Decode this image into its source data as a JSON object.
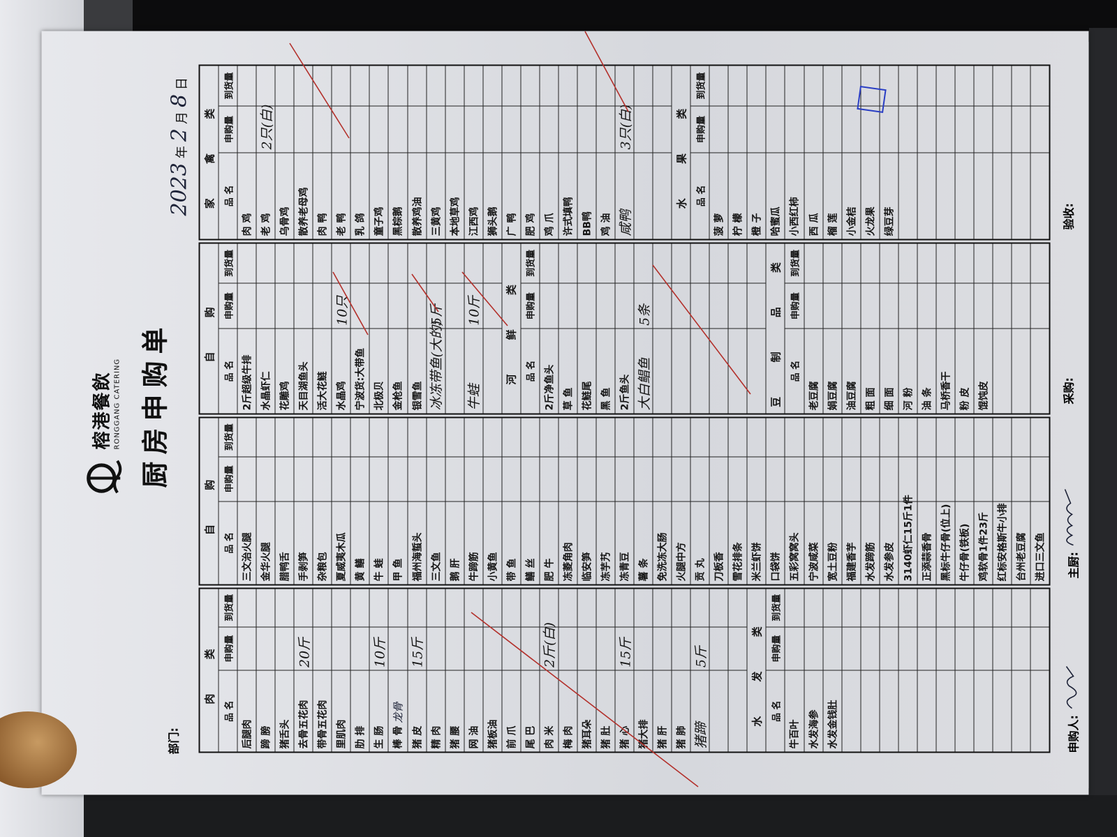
{
  "header": {
    "brand_cn": "榕港餐飲",
    "brand_en": "RONGGANG CATERING",
    "title": "厨房申购单",
    "department_label": "部门:",
    "date": {
      "year": "2023",
      "year_unit": "年",
      "month": "2",
      "month_unit": "月",
      "day": "8",
      "day_unit": "日"
    }
  },
  "column_headers": {
    "name": "品 名",
    "request": "申购量",
    "arrived": "到货量"
  },
  "groups": [
    {
      "sections": [
        {
          "title": "肉 类",
          "rows": [
            {
              "name": "后腿肉"
            },
            {
              "name": "蹄 膀"
            },
            {
              "name": "猪舌头"
            },
            {
              "name": "去骨五花肉",
              "qty": "20斤"
            },
            {
              "name": "带骨五花肉"
            },
            {
              "name": "里肌肉"
            },
            {
              "name": "肋 排"
            },
            {
              "name": "生 肠",
              "qty": "10斤"
            },
            {
              "name": "棒 骨",
              "note": "龙骨"
            },
            {
              "name": "猪 皮",
              "qty": "15斤"
            },
            {
              "name": "精 肉"
            },
            {
              "name": "猪 腰"
            },
            {
              "name": "网 油"
            },
            {
              "name": "猪板油"
            },
            {
              "name": "前 爪"
            },
            {
              "name": "尾 巴"
            },
            {
              "name": "肉 米",
              "qty": "2斤(白)"
            },
            {
              "name": "梅 肉"
            },
            {
              "name": "猪耳朵"
            },
            {
              "name": "猪 肚"
            },
            {
              "name": "猪 心",
              "qty": "15斤"
            },
            {
              "name": "猪大排"
            },
            {
              "name": "猪 肝"
            },
            {
              "name": "猪 肺"
            },
            {
              "name": "猪蹄",
              "qty": "5斤",
              "hw": true
            },
            {},
            {}
          ]
        },
        {
          "title": "水 发 类",
          "rows": [
            {
              "name": "牛百叶"
            },
            {
              "name": "水发海参"
            },
            {
              "name": "水发金钱肚"
            },
            {},
            {},
            {},
            {},
            {},
            {},
            {},
            {},
            {},
            {},
            {}
          ]
        }
      ]
    },
    {
      "sections": [
        {
          "title": "自 购",
          "rows": [
            {
              "name": "三文治火腿"
            },
            {
              "name": "金华火腿"
            },
            {
              "name": "腊鸭舌"
            },
            {
              "name": "手剥笋"
            },
            {
              "name": "杂粮包"
            },
            {
              "name": "夏威夷木瓜"
            },
            {
              "name": "黄 鳝"
            },
            {
              "name": "牛 蛙"
            },
            {
              "name": "甲 鱼"
            },
            {
              "name": "福州海蜇头"
            },
            {
              "name": "三文鱼"
            },
            {
              "name": "鹅 肝"
            },
            {
              "name": "牛蹄筋"
            },
            {
              "name": "小黄鱼"
            },
            {
              "name": "带 鱼"
            },
            {
              "name": "鳝 丝"
            },
            {
              "name": "肥 牛"
            },
            {
              "name": "冻菱角肉"
            },
            {
              "name": "临安笋"
            },
            {
              "name": "冻芋艿"
            },
            {
              "name": "冻青豆"
            },
            {
              "name": "薯 条"
            },
            {
              "name": "免洗冻大肠"
            },
            {
              "name": "火腿中方"
            },
            {
              "name": "贡 丸"
            },
            {
              "name": "刀板香"
            },
            {
              "name": "雪花排条"
            },
            {
              "name": "米兰虾饼"
            },
            {
              "name": "口袋饼"
            },
            {
              "name": "五彩窝窝头"
            },
            {
              "name": "宁波咸菜"
            },
            {
              "name": "宽土豆粉"
            },
            {
              "name": "福建香芋"
            },
            {
              "name": "水发蹄筋"
            },
            {
              "name": "水发参皮"
            },
            {
              "name": "3140虾仁15斤1件"
            },
            {
              "name": "正添蒜香骨"
            },
            {
              "name": "黑标牛仔骨(位上)"
            },
            {
              "name": "牛仔骨(铁板)"
            },
            {
              "name": "鸡软骨1件23斤"
            },
            {
              "name": "红标安格斯牛小排"
            },
            {
              "name": "台州老豆腐"
            },
            {
              "name": "进口三文鱼"
            }
          ]
        }
      ]
    },
    {
      "sections": [
        {
          "title": "自 购",
          "rows": [
            {
              "name": "2斤超级牛排"
            },
            {
              "name": "水晶虾仁"
            },
            {
              "name": "花雕鸡"
            },
            {
              "name": "天目湖鱼头"
            },
            {
              "name": "活大花鲢"
            },
            {
              "name": "水晶鸡",
              "qty": "10只"
            },
            {
              "name": "宁波货:大带鱼"
            },
            {
              "name": "北极贝"
            },
            {
              "name": "金枪鱼"
            },
            {
              "name": "银雪鱼"
            },
            {
              "name": "冰冻带鱼(大的)",
              "qty": "5斤",
              "hw": true
            },
            {},
            {
              "name": "牛蛙",
              "qty": "10斤",
              "hw": true
            },
            {}
          ]
        },
        {
          "title": "河 鲜 类",
          "rows": [
            {
              "name": "2斤净鱼头"
            },
            {
              "name": "草 鱼"
            },
            {
              "name": "花鲢尾"
            },
            {
              "name": "黑 鱼"
            },
            {
              "name": "2斤鱼头"
            },
            {
              "name": "大白鲳鱼",
              "qty": "5条",
              "hw": true
            },
            {},
            {},
            {},
            {},
            {},
            {}
          ]
        },
        {
          "title": "豆 制 品 类",
          "rows": [
            {
              "name": "老豆腐"
            },
            {
              "name": "娟豆腐"
            },
            {
              "name": "油豆腐"
            },
            {
              "name": "粗 面"
            },
            {
              "name": "细 面"
            },
            {
              "name": "河 粉"
            },
            {
              "name": "油 条"
            },
            {
              "name": "马桥香干"
            },
            {
              "name": "粉 皮"
            },
            {
              "name": "馄饨皮"
            },
            {},
            {},
            {}
          ]
        }
      ]
    },
    {
      "sections": [
        {
          "title": "家 禽 类",
          "rows": [
            {
              "name": "肉 鸡"
            },
            {
              "name": "老 鸡",
              "qty": "2只(白)"
            },
            {
              "name": "乌骨鸡"
            },
            {
              "name": "散养老母鸡"
            },
            {
              "name": "肉 鸭"
            },
            {
              "name": "老 鸭"
            },
            {
              "name": "乳 鸽"
            },
            {
              "name": "童子鸡"
            },
            {
              "name": "黑棕鹅"
            },
            {
              "name": "散养鸡油"
            },
            {
              "name": "三黄鸡"
            },
            {
              "name": "本地草鸡"
            },
            {
              "name": "江西鸡"
            },
            {
              "name": "狮头鹅"
            },
            {
              "name": "广 鸭"
            },
            {
              "name": "肥 鸡"
            },
            {
              "name": "鸡 爪"
            },
            {
              "name": "许式填鸭"
            },
            {
              "name": "BB鸭"
            },
            {
              "name": "鸡 油"
            },
            {
              "name": "咸鸭",
              "qty": "3只(白)",
              "hw": true
            },
            {},
            {}
          ]
        },
        {
          "title": "水 果 类",
          "rows": [
            {
              "name": "菠 萝"
            },
            {
              "name": "柠 檬"
            },
            {
              "name": "橙 子"
            },
            {
              "name": "哈蜜瓜"
            },
            {
              "name": "小西红柿"
            },
            {
              "name": "西 瓜"
            },
            {
              "name": "榴 莲"
            },
            {
              "name": "小金桔"
            },
            {
              "name": "火龙果"
            },
            {
              "name": "绿豆芽"
            },
            {},
            {},
            {},
            {},
            {},
            {},
            {},
            {}
          ]
        }
      ]
    }
  ],
  "footer": {
    "requester": "申购人:",
    "chef": "主厨:",
    "purchaser": "采购:",
    "receiver": "验收:"
  },
  "colors": {
    "ink_red": "#b3302b",
    "stamp_blue": "#2a3ec4",
    "handwriting": "#1e2338"
  }
}
